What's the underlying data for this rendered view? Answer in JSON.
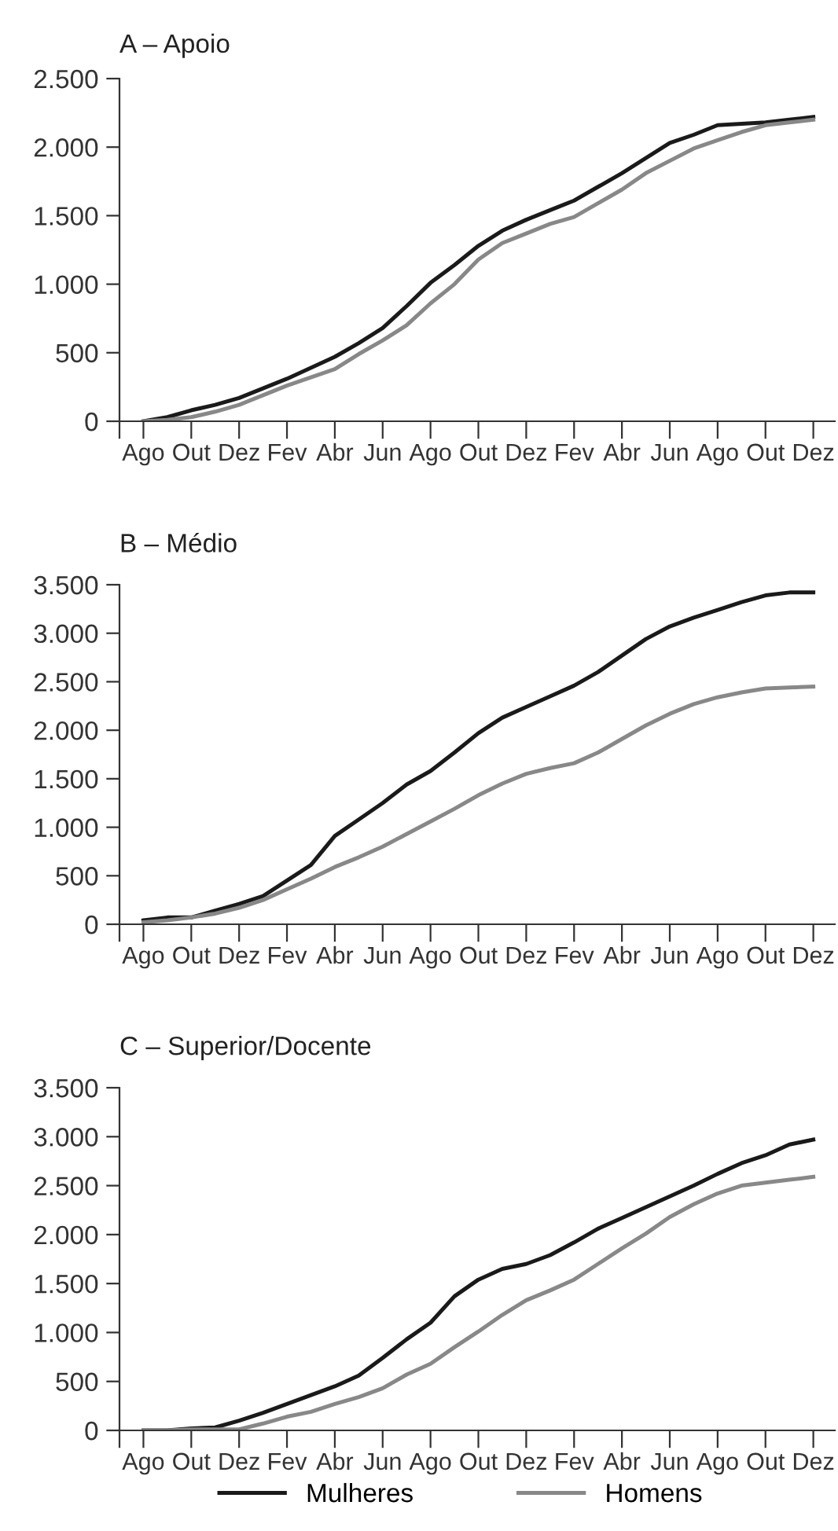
{
  "chart_data": [
    {
      "type": "line",
      "title": "A – Apoio",
      "categories": [
        "Ago",
        null,
        "Out",
        null,
        "Dez",
        null,
        "Fev",
        null,
        "Abr",
        null,
        "Jun",
        null,
        "Ago",
        null,
        "Out",
        null,
        "Dez",
        null,
        "Fev",
        null,
        "Abr",
        null,
        "Jun",
        null,
        "Ago",
        null,
        "Out",
        null,
        "Dez"
      ],
      "series": [
        {
          "color": "#1a1a1a",
          "values": [
            0,
            30,
            80,
            120,
            170,
            240,
            310,
            390,
            470,
            570,
            680,
            840,
            1010,
            1140,
            1280,
            1390,
            1470,
            1540,
            1610,
            1710,
            1810,
            1920,
            2030,
            2090,
            2160,
            2170,
            2180,
            2200,
            2220
          ]
        },
        {
          "color": "#888888",
          "values": [
            0,
            10,
            30,
            70,
            120,
            190,
            260,
            320,
            380,
            490,
            590,
            700,
            860,
            1000,
            1180,
            1300,
            1370,
            1440,
            1490,
            1590,
            1690,
            1810,
            1900,
            1990,
            2050,
            2110,
            2160,
            2180,
            2200
          ]
        }
      ],
      "ylim": [
        0,
        2500
      ],
      "yticks": [
        0,
        500,
        {
          "value": 1000,
          "label": "1.000"
        },
        {
          "value": 1500,
          "label": "1.500"
        },
        {
          "value": 2000,
          "label": "2.000"
        },
        {
          "value": 2500,
          "label": "2.500"
        }
      ],
      "grid": false,
      "legend": false
    },
    {
      "type": "line",
      "title": "B – Médio",
      "categories": [
        "Ago",
        null,
        "Out",
        null,
        "Dez",
        null,
        "Fev",
        null,
        "Abr",
        null,
        "Jun",
        null,
        "Ago",
        null,
        "Out",
        null,
        "Dez",
        null,
        "Fev",
        null,
        "Abr",
        null,
        "Jun",
        null,
        "Ago",
        null,
        "Out",
        null,
        "Dez"
      ],
      "series": [
        {
          "color": "#1a1a1a",
          "values": [
            40,
            70,
            70,
            140,
            210,
            290,
            450,
            610,
            910,
            1080,
            1250,
            1440,
            1580,
            1770,
            1970,
            2130,
            2240,
            2350,
            2460,
            2600,
            2770,
            2940,
            3070,
            3160,
            3240,
            3320,
            3390,
            3420,
            3420
          ]
        },
        {
          "color": "#888888",
          "values": [
            20,
            40,
            70,
            110,
            170,
            250,
            360,
            470,
            590,
            690,
            800,
            930,
            1060,
            1190,
            1330,
            1450,
            1550,
            1610,
            1660,
            1770,
            1910,
            2050,
            2170,
            2270,
            2340,
            2390,
            2430,
            2440,
            2450
          ]
        }
      ],
      "ylim": [
        0,
        3500
      ],
      "yticks": [
        0,
        500,
        {
          "value": 1000,
          "label": "1.000"
        },
        {
          "value": 1500,
          "label": "1.500"
        },
        {
          "value": 2000,
          "label": "2.000"
        },
        {
          "value": 2500,
          "label": "2.500"
        },
        {
          "value": 3000,
          "label": "3.000"
        },
        {
          "value": 3500,
          "label": "3.500"
        }
      ],
      "grid": false,
      "legend": false
    },
    {
      "type": "line",
      "title": "C – Superior/Docente",
      "categories": [
        "Ago",
        null,
        "Out",
        null,
        "Dez",
        null,
        "Fev",
        null,
        "Abr",
        null,
        "Jun",
        null,
        "Ago",
        null,
        "Out",
        null,
        "Dez",
        null,
        "Fev",
        null,
        "Abr",
        null,
        "Jun",
        null,
        "Ago",
        null,
        "Out",
        null,
        "Dez"
      ],
      "series": [
        {
          "name": "Mulheres",
          "color": "#1a1a1a",
          "values": [
            0,
            0,
            20,
            30,
            100,
            180,
            270,
            360,
            450,
            560,
            740,
            930,
            1100,
            1370,
            1540,
            1650,
            1700,
            1790,
            1920,
            2060,
            2170,
            2280,
            2390,
            2500,
            2620,
            2730,
            2810,
            2920,
            2970
          ]
        },
        {
          "name": "Homens",
          "color": "#888888",
          "values": [
            0,
            0,
            10,
            10,
            10,
            70,
            140,
            190,
            270,
            340,
            430,
            570,
            680,
            850,
            1010,
            1180,
            1330,
            1430,
            1540,
            1700,
            1860,
            2010,
            2180,
            2310,
            2420,
            2500,
            2530,
            2560,
            2590
          ]
        }
      ],
      "ylim": [
        0,
        3500
      ],
      "yticks": [
        0,
        500,
        {
          "value": 1000,
          "label": "1.000"
        },
        {
          "value": 1500,
          "label": "1.500"
        },
        {
          "value": 2000,
          "label": "2.000"
        },
        {
          "value": 2500,
          "label": "2.500"
        },
        {
          "value": 3000,
          "label": "3.000"
        },
        {
          "value": 3500,
          "label": "3.500"
        }
      ],
      "grid": false,
      "legend": "bottom"
    }
  ]
}
